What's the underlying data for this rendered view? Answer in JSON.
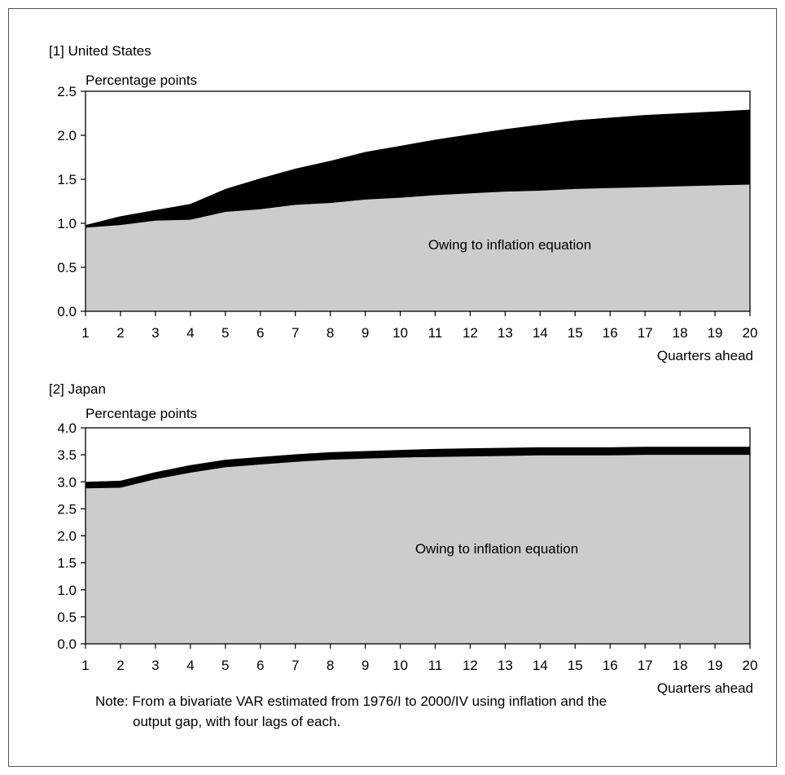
{
  "colors": {
    "inflation_area": "#cccccc",
    "output_gap_area": "#000000",
    "axis": "#000000",
    "border": "#555555"
  },
  "note": {
    "line1": "Note: From a bivariate VAR estimated from 1976/I to 2000/IV using inflation and the",
    "line2": "output gap, with four lags of each."
  },
  "chart_data": [
    {
      "type": "area",
      "title": "[1] United States",
      "ylabel": "Percentage points",
      "xlabel": "Quarters ahead",
      "x": [
        1,
        2,
        3,
        4,
        5,
        6,
        7,
        8,
        9,
        10,
        11,
        12,
        13,
        14,
        15,
        16,
        17,
        18,
        19,
        20
      ],
      "ylim": [
        0,
        2.5
      ],
      "yticks": [
        "0.0",
        "0.5",
        "1.0",
        "1.5",
        "2.0",
        "2.5"
      ],
      "annotation": "Owing to inflation equation",
      "series": [
        {
          "role": "inflation",
          "color": "#cccccc",
          "values": [
            0.95,
            0.98,
            1.03,
            1.04,
            1.13,
            1.16,
            1.21,
            1.23,
            1.27,
            1.29,
            1.32,
            1.34,
            1.36,
            1.37,
            1.39,
            1.4,
            1.41,
            1.42,
            1.43,
            1.44
          ]
        },
        {
          "role": "output_gap",
          "color": "#000000",
          "values": [
            0.03,
            0.1,
            0.12,
            0.18,
            0.26,
            0.35,
            0.41,
            0.48,
            0.54,
            0.59,
            0.63,
            0.67,
            0.71,
            0.75,
            0.78,
            0.8,
            0.82,
            0.83,
            0.84,
            0.85
          ]
        }
      ]
    },
    {
      "type": "area",
      "title": "[2] Japan",
      "ylabel": "Percentage points",
      "xlabel": "Quarters ahead",
      "x": [
        1,
        2,
        3,
        4,
        5,
        6,
        7,
        8,
        9,
        10,
        11,
        12,
        13,
        14,
        15,
        16,
        17,
        18,
        19,
        20
      ],
      "ylim": [
        0,
        4.0
      ],
      "yticks": [
        "0.0",
        "0.5",
        "1.0",
        "1.5",
        "2.0",
        "2.5",
        "3.0",
        "3.5",
        "4.0"
      ],
      "annotation": "Owing to inflation equation",
      "series": [
        {
          "role": "inflation",
          "color": "#cccccc",
          "values": [
            2.88,
            2.89,
            3.05,
            3.17,
            3.27,
            3.32,
            3.37,
            3.41,
            3.43,
            3.45,
            3.46,
            3.47,
            3.48,
            3.49,
            3.49,
            3.49,
            3.5,
            3.5,
            3.5,
            3.5
          ]
        },
        {
          "role": "output_gap",
          "color": "#000000",
          "values": [
            0.12,
            0.13,
            0.13,
            0.14,
            0.14,
            0.14,
            0.14,
            0.14,
            0.14,
            0.14,
            0.15,
            0.15,
            0.15,
            0.15,
            0.15,
            0.15,
            0.15,
            0.15,
            0.15,
            0.15
          ]
        }
      ]
    }
  ]
}
